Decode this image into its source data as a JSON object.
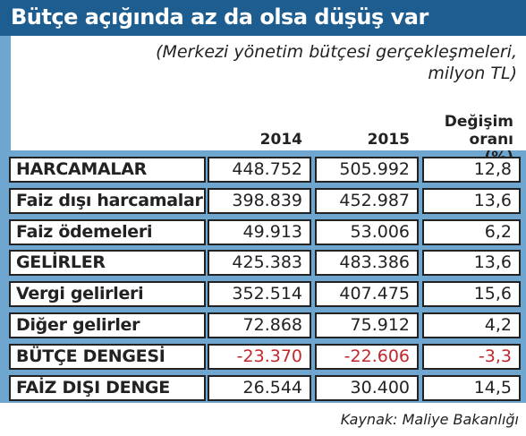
{
  "header": {
    "title": "Bütçe açığında az da olsa düşüş var",
    "subtitle": "(Merkezi yönetim bütçesi gerçekleşmeleri, milyon TL)"
  },
  "table": {
    "columns": [
      "2014",
      "2015",
      "Değişim oranı (%)"
    ],
    "rows": [
      [
        "HARCAMALAR",
        "448.752",
        "505.992",
        "12,8"
      ],
      [
        "Faiz dışı harcamalar",
        "398.839",
        "452.987",
        "13,6"
      ],
      [
        "Faiz ödemeleri",
        "49.913",
        "53.006",
        "6,2"
      ],
      [
        "GELİRLER",
        "425.383",
        "483.386",
        "13,6"
      ],
      [
        "Vergi gelirleri",
        "352.514",
        "407.475",
        "15,6"
      ],
      [
        "Diğer gelirler",
        "72.868",
        "75.912",
        "4,2"
      ],
      [
        "BÜTÇE DENGESİ",
        "-23.370",
        "-22.606",
        "-3,3"
      ],
      [
        "FAİZ DIŞI DENGE",
        "26.544",
        "30.400",
        "14,5"
      ]
    ]
  },
  "source": "Kaynak: Maliye Bakanlığı"
}
